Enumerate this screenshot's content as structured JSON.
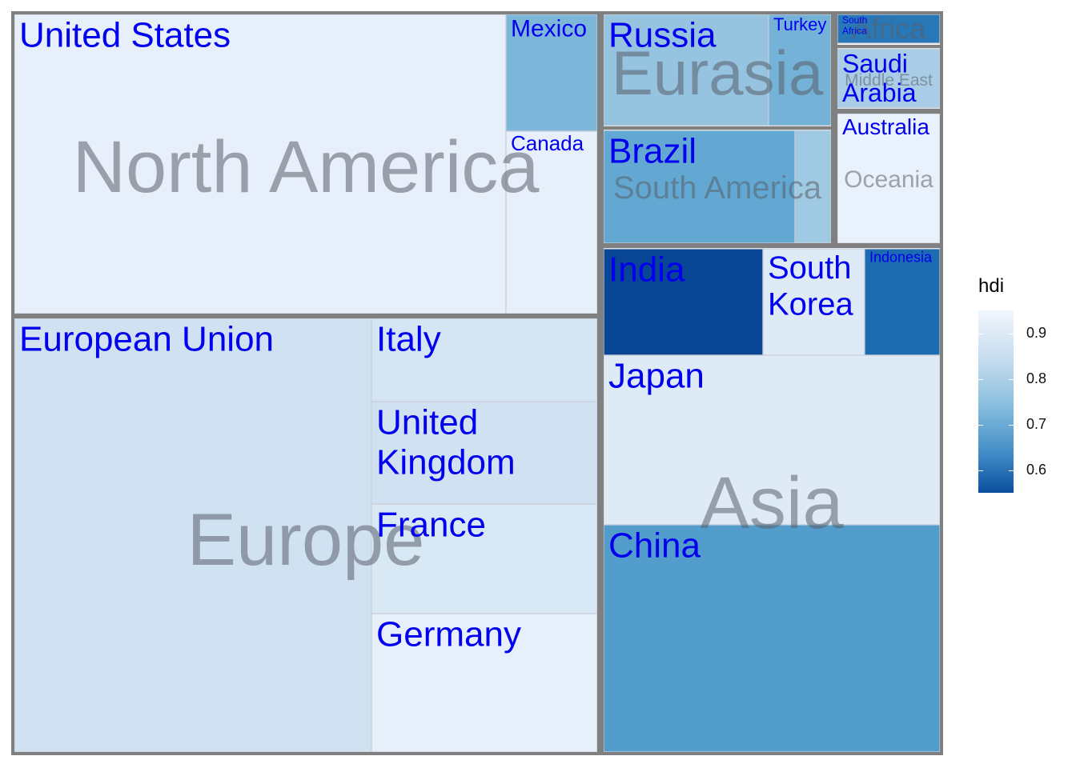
{
  "chart_data": {
    "type": "treemap",
    "legend": {
      "title": "hdi",
      "ticks": [
        0.9,
        0.8,
        0.7,
        0.6
      ],
      "placement": "right"
    },
    "groups": [
      {
        "name": "North America",
        "items": [
          {
            "label": "United States",
            "hdi": 0.92
          },
          {
            "label": "Mexico",
            "hdi": 0.77
          },
          {
            "label": "Canada",
            "hdi": 0.92
          }
        ]
      },
      {
        "name": "Europe",
        "items": [
          {
            "label": "European Union",
            "hdi": 0.87
          },
          {
            "label": "Italy",
            "hdi": 0.88
          },
          {
            "label": "United\nKingdom",
            "hdi": 0.87
          },
          {
            "label": "France",
            "hdi": 0.89
          },
          {
            "label": "Germany",
            "hdi": 0.92
          }
        ]
      },
      {
        "name": "Eurasia",
        "items": [
          {
            "label": "Russia",
            "hdi": 0.8
          },
          {
            "label": "Turkey",
            "hdi": 0.76
          }
        ]
      },
      {
        "name": "South America",
        "items": [
          {
            "label": "Brazil",
            "hdi": 0.74
          },
          {
            "label": "",
            "hdi": 0.81
          }
        ]
      },
      {
        "name": "Africa",
        "items": [
          {
            "label": "South\nAfrica",
            "hdi": 0.66
          }
        ]
      },
      {
        "name": "Middle East",
        "items": [
          {
            "label": "Saudi\nArabia",
            "hdi": 0.82
          }
        ]
      },
      {
        "name": "Oceania",
        "items": [
          {
            "label": "Australia",
            "hdi": 0.93
          }
        ]
      },
      {
        "name": "Asia",
        "items": [
          {
            "label": "India",
            "hdi": 0.55
          },
          {
            "label": "South\nKorea",
            "hdi": 0.9
          },
          {
            "label": "Indonesia",
            "hdi": 0.64
          },
          {
            "label": "Japan",
            "hdi": 0.9
          },
          {
            "label": "China",
            "hdi": 0.72
          }
        ]
      }
    ]
  }
}
